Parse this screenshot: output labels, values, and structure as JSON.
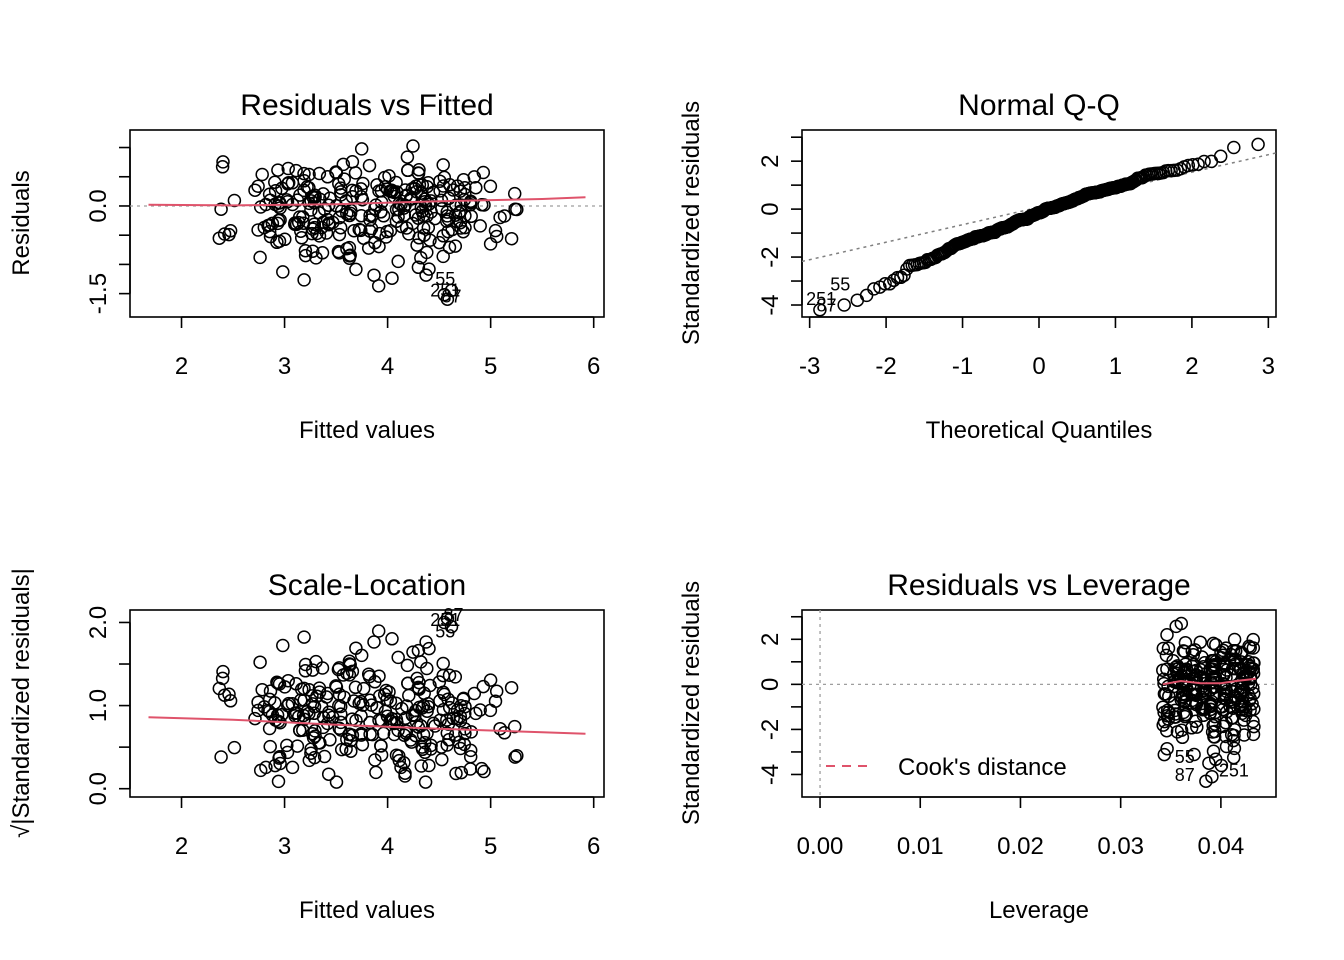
{
  "chart_data": [
    {
      "id": "rvf",
      "type": "scatter",
      "title": "Residuals vs Fitted",
      "xlabel": "Fitted values",
      "ylabel": "Residuals",
      "xlim": [
        1.5,
        6.1
      ],
      "ylim": [
        -1.9,
        1.3
      ],
      "xticks": [
        2,
        3,
        4,
        5,
        6
      ],
      "yticks": [
        -1.5,
        -1.0,
        -0.5,
        0.0,
        0.5,
        1.0
      ],
      "ytick_labels": [
        "-1.5",
        "",
        "",
        "0.0",
        "",
        ""
      ],
      "refline_y": 0,
      "smoother": [
        [
          1.68,
          0.02
        ],
        [
          2.5,
          0.01
        ],
        [
          3.5,
          0.03
        ],
        [
          4.5,
          0.08
        ],
        [
          5.5,
          0.12
        ],
        [
          5.92,
          0.15
        ]
      ],
      "labels": [
        {
          "text": "55",
          "x": 4.56,
          "y": -1.35
        },
        {
          "text": "251",
          "x": 4.56,
          "y": -1.55
        },
        {
          "text": "87",
          "x": 4.62,
          "y": -1.65
        }
      ],
      "seed": 11,
      "n": 300
    },
    {
      "id": "qq",
      "type": "scatter",
      "title": "Normal Q-Q",
      "xlabel": "Theoretical Quantiles",
      "ylabel": "Standardized residuals",
      "xlim": [
        -3.1,
        3.1
      ],
      "ylim": [
        -4.5,
        3.3
      ],
      "xticks": [
        -3,
        -2,
        -1,
        0,
        1,
        2,
        3
      ],
      "yticks": [
        -4,
        -3,
        -2,
        -1,
        0,
        1,
        2,
        3
      ],
      "ytick_labels": [
        "-4",
        "",
        "-2",
        "",
        "0",
        "",
        "2",
        ""
      ],
      "refline": {
        "slope": 0.73,
        "intercept": 0.08
      },
      "labels": [
        {
          "text": "55",
          "x": -2.6,
          "y": -3.4
        },
        {
          "text": "251",
          "x": -2.85,
          "y": -4.0
        },
        {
          "text": "87",
          "x": -2.78,
          "y": -4.28
        }
      ],
      "n": 300
    },
    {
      "id": "sl",
      "type": "scatter",
      "title": "Scale-Location",
      "xlabel": "Fitted values",
      "ylabel": "√|Standardized residuals|",
      "xlim": [
        1.5,
        6.1
      ],
      "ylim": [
        -0.1,
        2.15
      ],
      "xticks": [
        2,
        3,
        4,
        5,
        6
      ],
      "yticks": [
        0.0,
        0.5,
        1.0,
        1.5,
        2.0
      ],
      "ytick_labels": [
        "0.0",
        "",
        "1.0",
        "",
        "2.0"
      ],
      "smoother": [
        [
          1.68,
          0.86
        ],
        [
          2.5,
          0.83
        ],
        [
          3.5,
          0.77
        ],
        [
          4.5,
          0.72
        ],
        [
          5.5,
          0.68
        ],
        [
          5.92,
          0.66
        ]
      ],
      "labels": [
        {
          "text": "87",
          "x": 4.64,
          "y": 2.02
        },
        {
          "text": "251",
          "x": 4.56,
          "y": 1.96
        },
        {
          "text": "55",
          "x": 4.56,
          "y": 1.82
        }
      ],
      "seed": 11,
      "n": 300
    },
    {
      "id": "rvl",
      "type": "scatter",
      "title": "Residuals vs Leverage",
      "xlabel": "Leverage",
      "ylabel": "Standardized residuals",
      "xlim": [
        -0.0018,
        0.0455
      ],
      "ylim": [
        -5.0,
        3.3
      ],
      "xticks": [
        0.0,
        0.01,
        0.02,
        0.03,
        0.04
      ],
      "xtick_labels": [
        "0.00",
        "0.01",
        "0.02",
        "0.03",
        "0.04"
      ],
      "yticks": [
        -4,
        -3,
        -2,
        -1,
        0,
        1,
        2,
        3
      ],
      "ytick_labels": [
        "-4",
        "",
        "-2",
        "",
        "0",
        "",
        "2",
        ""
      ],
      "refline_y": 0,
      "refline_x": 0,
      "smoother": [
        [
          0.0342,
          0.0
        ],
        [
          0.036,
          0.15
        ],
        [
          0.038,
          0.05
        ],
        [
          0.04,
          0.05
        ],
        [
          0.0415,
          0.15
        ],
        [
          0.0435,
          0.25
        ]
      ],
      "legend": {
        "label": "Cook's distance",
        "position": "bottom-left"
      },
      "labels": [
        {
          "text": "55",
          "x": 0.0364,
          "y": -3.5
        },
        {
          "text": "87",
          "x": 0.0364,
          "y": -4.3
        },
        {
          "text": "251",
          "x": 0.0413,
          "y": -4.1
        }
      ],
      "leverage_groups": [
        0.0345,
        0.0355,
        0.0363,
        0.0373,
        0.0382,
        0.0392,
        0.0403,
        0.0412,
        0.0422,
        0.043
      ],
      "n": 300
    }
  ],
  "colors": {
    "points": "#000000",
    "smoother": "#DF536B",
    "reference": "#9E9E9E",
    "qqline": "#808080"
  }
}
